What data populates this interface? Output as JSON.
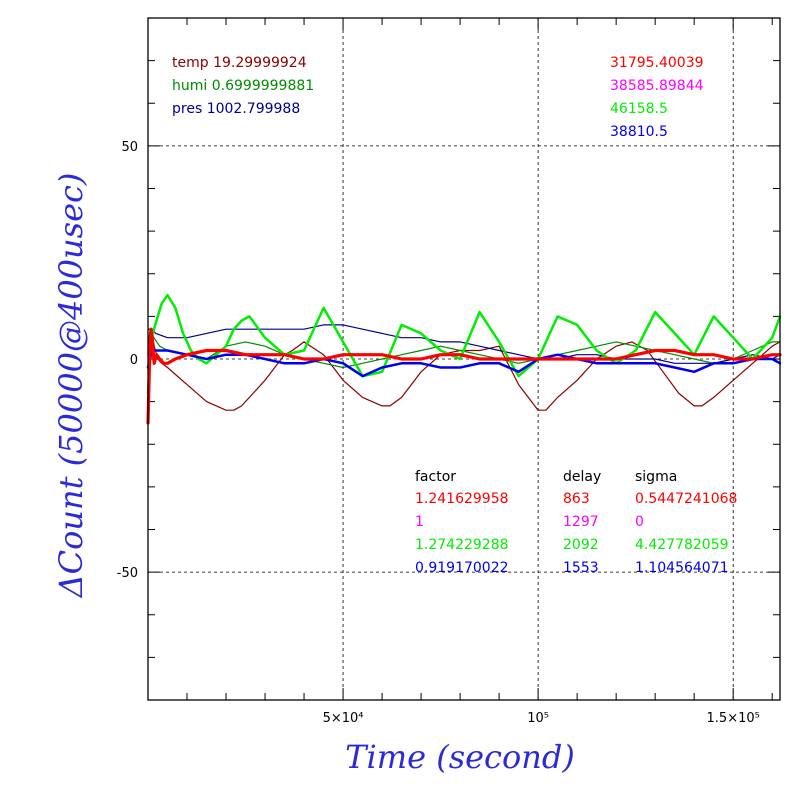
{
  "chart_data": {
    "type": "line",
    "xlabel": "Time (second)",
    "ylabel": "ΔCount (50000@400usec)",
    "xlim": [
      0,
      162000
    ],
    "ylim": [
      -80,
      80
    ],
    "grid": true,
    "x_ticks": [
      {
        "value": 50000,
        "label": "5×10⁴"
      },
      {
        "value": 100000,
        "label": "10⁵"
      },
      {
        "value": 150000,
        "label": "1.5×10⁵"
      }
    ],
    "y_ticks": [
      {
        "value": 50,
        "label": "50"
      },
      {
        "value": 0,
        "label": "0"
      },
      {
        "value": -50,
        "label": "-50"
      }
    ],
    "env_info": [
      {
        "label": "temp",
        "value": "19.29999924",
        "color": "#8b0000"
      },
      {
        "label": "humi",
        "value": "0.6999999881",
        "color": "#008b00"
      },
      {
        "label": "pres",
        "value": "1002.799988",
        "color": "#00008b"
      }
    ],
    "counts": [
      {
        "value": "31795.40039",
        "color": "#ff0000"
      },
      {
        "value": "38585.89844",
        "color": "#ff00ff"
      },
      {
        "value": "46158.5",
        "color": "#00ee00"
      },
      {
        "value": "38810.5",
        "color": "#0000ee"
      }
    ],
    "table": {
      "headers": [
        "factor",
        "delay",
        "sigma"
      ],
      "rows": [
        {
          "factor": "1.241629958",
          "delay": "863",
          "sigma": "0.5447241068",
          "color": "#ff0000"
        },
        {
          "factor": "1",
          "delay": "1297",
          "sigma": "0",
          "color": "#ff00ff"
        },
        {
          "factor": "1.274229288",
          "delay": "2092",
          "sigma": "4.427782059",
          "color": "#00ee00"
        },
        {
          "factor": "0.919170022",
          "delay": "1553",
          "sigma": "1.104564071",
          "color": "#0000ee"
        }
      ]
    },
    "series": [
      {
        "color": "#8b0000",
        "width": 1.2,
        "x": [
          0,
          500,
          1000,
          1600,
          2500,
          3500,
          5000,
          10000,
          15000,
          20000,
          22000,
          24000,
          30000,
          35000,
          37000,
          40000,
          45000,
          50000,
          55000,
          60000,
          62000,
          65000,
          70000,
          75000,
          80000,
          85000,
          90000,
          95000,
          100000,
          102000,
          105000,
          110000,
          115000,
          120000,
          124000,
          128000,
          132000,
          136000,
          140000,
          142000,
          145000,
          150000,
          155000,
          160000,
          162000
        ],
        "y": [
          -15,
          0,
          7,
          3,
          0,
          -1,
          -2,
          -6,
          -10,
          -12,
          -12,
          -11,
          -5,
          1,
          2,
          4,
          1,
          -5,
          -9,
          -11,
          -11,
          -9,
          -3,
          1,
          2,
          2,
          3,
          -6,
          -12,
          -12,
          -9,
          -5,
          0,
          3,
          4,
          2,
          -3,
          -8,
          -11,
          -11,
          -9,
          -5,
          -1,
          3,
          4
        ]
      },
      {
        "color": "#008b00",
        "width": 1.2,
        "x": [
          0,
          500,
          1500,
          3000,
          5000,
          10000,
          15000,
          20000,
          25000,
          30000,
          35000,
          40000,
          45000,
          50000,
          55000,
          60000,
          65000,
          70000,
          75000,
          80000,
          85000,
          90000,
          95000,
          100000,
          105000,
          110000,
          115000,
          120000,
          125000,
          130000,
          135000,
          140000,
          145000,
          150000,
          155000,
          160000,
          162000
        ],
        "y": [
          3,
          7,
          5,
          3,
          2,
          1,
          0,
          3,
          4,
          3,
          1,
          0,
          -1,
          -2,
          -1,
          0,
          1,
          2,
          3,
          2,
          1,
          0,
          -1,
          0,
          1,
          2,
          3,
          4,
          3,
          2,
          1,
          0,
          -1,
          0,
          2,
          4,
          4
        ]
      },
      {
        "color": "#00008b",
        "width": 1.2,
        "x": [
          0,
          1000,
          2000,
          5000,
          10000,
          15000,
          20000,
          25000,
          30000,
          35000,
          40000,
          45000,
          50000,
          55000,
          60000,
          65000,
          70000,
          75000,
          80000,
          85000,
          90000,
          95000,
          100000,
          105000,
          110000,
          115000,
          120000,
          125000,
          130000,
          135000,
          140000,
          145000,
          150000,
          155000,
          160000,
          162000
        ],
        "y": [
          7,
          7,
          6,
          5,
          5,
          6,
          7,
          7,
          7,
          7,
          7,
          8,
          8,
          7,
          6,
          5,
          5,
          4,
          4,
          3,
          2,
          1,
          0,
          0,
          1,
          1,
          0,
          0,
          0,
          -1,
          -1,
          -1,
          0,
          1,
          0,
          1
        ]
      },
      {
        "color": "#00ee00",
        "width": 2.5,
        "x": [
          0,
          800,
          1500,
          2500,
          3500,
          5000,
          7000,
          9000,
          11000,
          13000,
          15000,
          20000,
          22000,
          24000,
          26000,
          30000,
          35000,
          40000,
          45000,
          50000,
          55000,
          60000,
          65000,
          70000,
          75000,
          80000,
          85000,
          90000,
          95000,
          100000,
          105000,
          110000,
          115000,
          120000,
          125000,
          130000,
          135000,
          140000,
          145000,
          150000,
          155000,
          160000,
          162000
        ],
        "y": [
          -8,
          4,
          7,
          10,
          13,
          15,
          12,
          6,
          2,
          0,
          -1,
          3,
          7,
          9,
          10,
          5,
          1,
          2,
          12,
          4,
          -4,
          -3,
          8,
          6,
          2,
          0,
          11,
          4,
          -4,
          0,
          10,
          8,
          2,
          -1,
          2,
          11,
          6,
          1,
          10,
          5,
          0,
          5,
          10
        ]
      },
      {
        "color": "#0000ee",
        "width": 2.5,
        "x": [
          0,
          800,
          1500,
          3000,
          5000,
          10000,
          15000,
          20000,
          25000,
          30000,
          35000,
          40000,
          45000,
          50000,
          55000,
          60000,
          65000,
          70000,
          75000,
          80000,
          85000,
          90000,
          95000,
          100000,
          105000,
          110000,
          115000,
          120000,
          125000,
          130000,
          135000,
          140000,
          145000,
          150000,
          155000,
          160000,
          162000
        ],
        "y": [
          -2,
          1,
          2,
          2,
          2,
          1,
          0,
          1,
          1,
          0,
          -1,
          -1,
          0,
          -1,
          -4,
          -2,
          -1,
          -1,
          -2,
          -2,
          -1,
          -1,
          -3,
          0,
          1,
          0,
          -1,
          -1,
          -1,
          -1,
          -2,
          -3,
          -1,
          -1,
          0,
          0,
          -1
        ]
      },
      {
        "color": "#ff0000",
        "width": 3.2,
        "x": [
          0,
          400,
          800,
          1200,
          1600,
          2200,
          3000,
          4000,
          5000,
          7000,
          10000,
          15000,
          20000,
          25000,
          30000,
          35000,
          40000,
          45000,
          50000,
          55000,
          60000,
          65000,
          70000,
          75000,
          80000,
          85000,
          90000,
          95000,
          100000,
          105000,
          110000,
          115000,
          120000,
          125000,
          130000,
          135000,
          140000,
          145000,
          150000,
          155000,
          160000,
          162000
        ],
        "y": [
          -15,
          0,
          7,
          3,
          -1,
          1,
          0,
          -1,
          -1,
          0,
          1,
          2,
          2,
          1,
          1,
          1,
          0,
          0,
          1,
          1,
          1,
          0,
          0,
          1,
          1,
          0,
          0,
          0,
          0,
          0,
          0,
          0,
          0,
          1,
          2,
          2,
          1,
          1,
          0,
          0,
          1,
          1
        ]
      }
    ]
  }
}
